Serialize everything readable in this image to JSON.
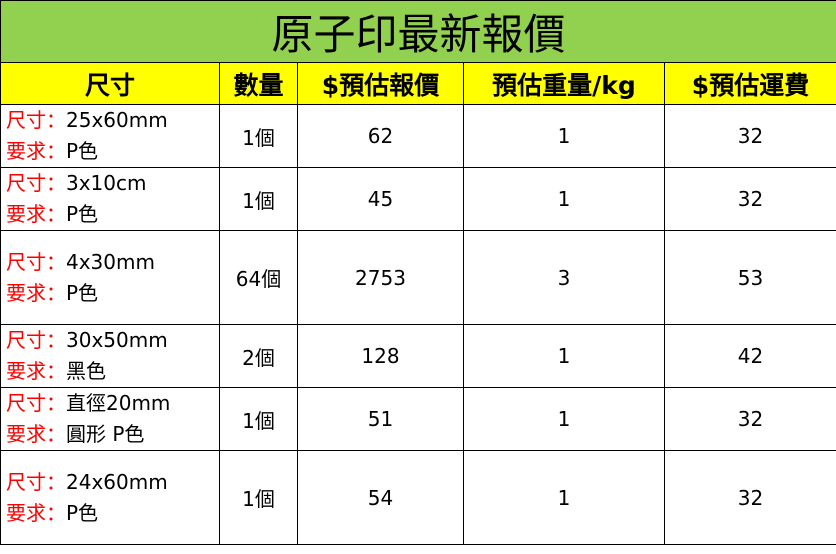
{
  "title": "原子印最新報價",
  "headers": [
    "尺寸",
    "數量",
    "$預估報價",
    "預估重量/kg",
    "$預估運費"
  ],
  "size_label": "尺寸：",
  "req_label": "要求：",
  "rows": [
    {
      "size": "25x60mm",
      "req": "P色",
      "qty": "1個",
      "price": "62",
      "weight": "1",
      "shipping": "32"
    },
    {
      "size": "3x10cm",
      "req": "P色",
      "qty": "1個",
      "price": "45",
      "weight": "1",
      "shipping": "32"
    },
    {
      "size": "4x30mm",
      "req": "P色",
      "qty": "64個",
      "price": "2753",
      "weight": "3",
      "shipping": "53"
    },
    {
      "size": "30x50mm",
      "req": "黑色",
      "qty": "2個",
      "price": "128",
      "weight": "1",
      "shipping": "42"
    },
    {
      "size": "直徑20mm",
      "req": "圓形 P色",
      "qty": "1個",
      "price": "51",
      "weight": "1",
      "shipping": "32"
    },
    {
      "size": "24x60mm",
      "req": "P色",
      "qty": "1個",
      "price": "54",
      "weight": "1",
      "shipping": "32"
    }
  ],
  "colors": {
    "title_bg": "#92d050",
    "header_bg": "#ffff00",
    "label": "#ff0000"
  }
}
